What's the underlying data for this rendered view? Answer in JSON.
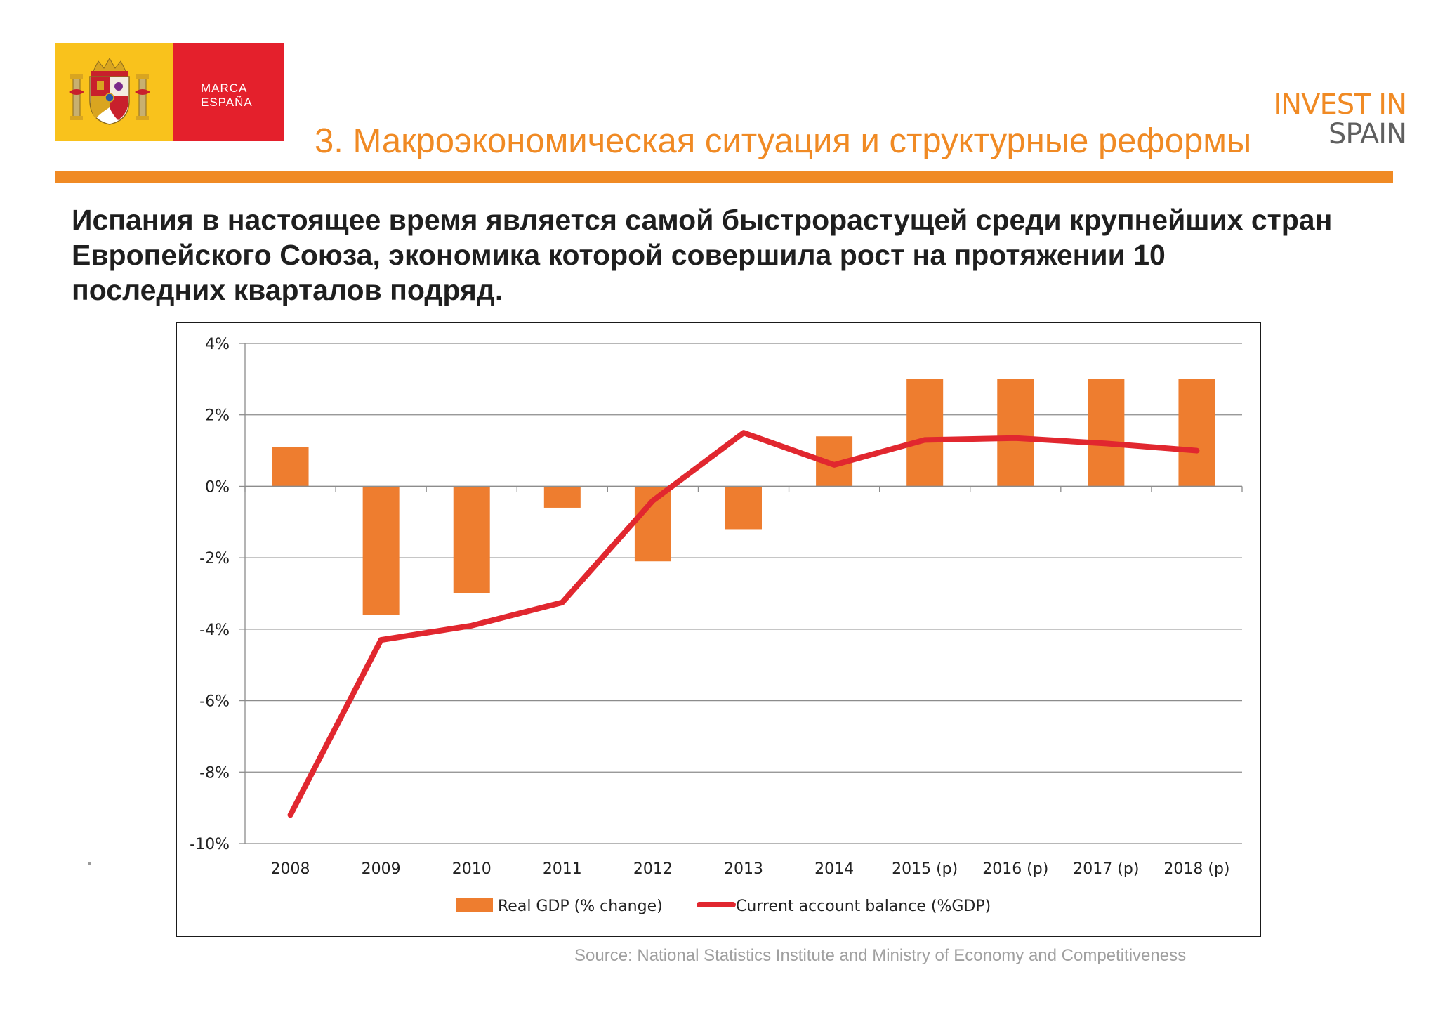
{
  "brand": {
    "marca_line1": "MARCA",
    "marca_line2": "ESPAÑA",
    "invest_line1": "INVEST IN",
    "invest_line2": "SPAIN",
    "colors": {
      "accent_orange": "#f08a24",
      "brand_red": "#e4202c",
      "brand_yellow": "#f9c21c"
    }
  },
  "header": {
    "title": "3. Макроэкономическая ситуация и структурные реформы"
  },
  "headline": "Испания в настоящее время является самой быстрорастущей среди крупнейших стран\nЕвропейского Союза, экономика которой совершила рост на протяжении 10\n последних кварталов подряд.",
  "source": "Source: National Statistics Institute and Ministry of Economy and Competitiveness",
  "chart_data": {
    "type": "bar",
    "title": "",
    "xlabel": "",
    "ylabel": "",
    "categories": [
      "2008",
      "2009",
      "2010",
      "2011",
      "2012",
      "2013",
      "2014",
      "2015 (p)",
      "2016 (p)",
      "2017 (p)",
      "2018 (p)"
    ],
    "ylim": [
      -10,
      4
    ],
    "y_ticks": [
      4,
      2,
      0,
      -2,
      -4,
      -6,
      -8,
      -10
    ],
    "y_tick_labels": [
      "4%",
      "2%",
      "0%",
      "-2%",
      "-4%",
      "-6%",
      "-8%",
      "-10%"
    ],
    "grid": true,
    "legend_position": "bottom",
    "series": [
      {
        "name": "Real GDP (% change)",
        "type": "bar",
        "color": "#ee7d2f",
        "values": [
          1.1,
          -3.6,
          -3.0,
          -0.6,
          -2.1,
          -1.2,
          1.4,
          3.0,
          3.0,
          3.0,
          3.0
        ]
      },
      {
        "name": "Current account balance (%GDP)",
        "type": "line",
        "color": "#e1272f",
        "values": [
          -9.2,
          -4.3,
          -3.9,
          -3.25,
          -0.4,
          1.5,
          0.6,
          1.3,
          1.35,
          1.2,
          1.0
        ]
      }
    ]
  }
}
